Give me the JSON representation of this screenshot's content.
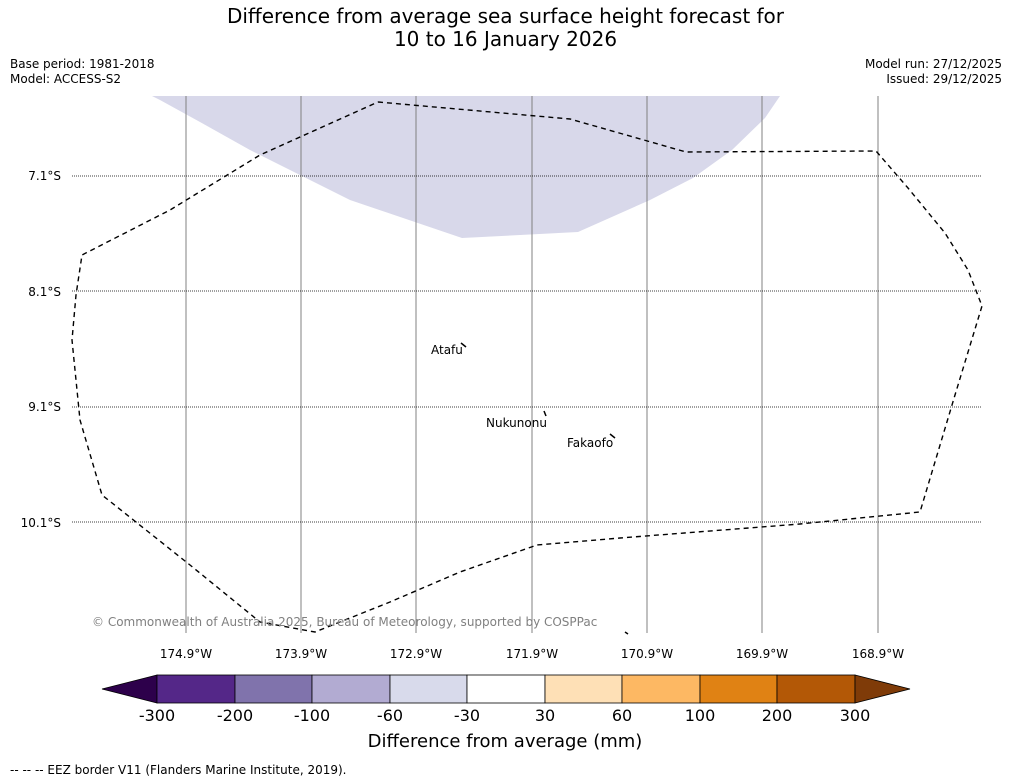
{
  "header": {
    "title_line1": "Difference from average sea surface height forecast for",
    "title_line2": "10 to 16 January 2026",
    "base_period": "Base period: 1981-2018",
    "model": "Model: ACCESS-S2",
    "model_run": "Model run: 27/12/2025",
    "issued": "Issued: 29/12/2025"
  },
  "map": {
    "lat_labels": [
      "7.1°S",
      "8.1°S",
      "9.1°S",
      "10.1°S"
    ],
    "lon_labels": [
      "174.9°W",
      "173.9°W",
      "172.9°W",
      "171.9°W",
      "170.9°W",
      "169.9°W",
      "168.9°W"
    ],
    "islands": {
      "atafu": "Atafu",
      "nukunonu": "Nukunonu",
      "fakaofo": "Fakaofo"
    },
    "copyright": "© Commonwealth of Australia 2025, Bureau of Meteorology, supported by COSPPac",
    "anomaly_fill_color": "#d8d8ea"
  },
  "colorbar": {
    "ticks": [
      "-300",
      "-200",
      "-100",
      "-60",
      "-30",
      "30",
      "60",
      "100",
      "200",
      "300"
    ],
    "colors": [
      "#2d004b",
      "#542788",
      "#8073ac",
      "#b2abd2",
      "#d8daeb",
      "#ffffff",
      "#fee0b6",
      "#fdb863",
      "#e08214",
      "#b35806",
      "#7f3b08"
    ],
    "label": "Difference from average (mm)"
  },
  "footnote": "--  --  -- EEZ border V11 (Flanders Marine Institute, 2019)."
}
